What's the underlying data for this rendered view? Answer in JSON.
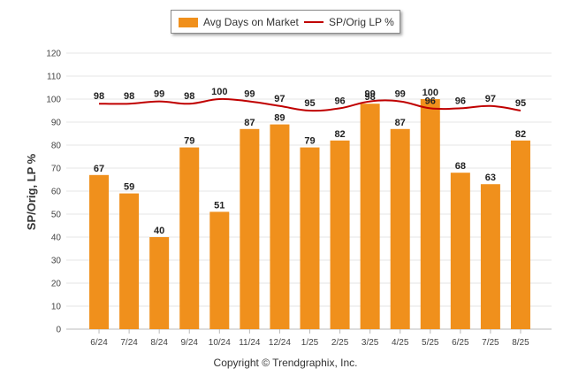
{
  "chart_data": {
    "type": "bar",
    "categories": [
      "6/24",
      "7/24",
      "8/24",
      "9/24",
      "10/24",
      "11/24",
      "12/24",
      "1/25",
      "2/25",
      "3/25",
      "4/25",
      "5/25",
      "6/25",
      "7/25",
      "8/25"
    ],
    "series": [
      {
        "name": "Avg Days on Market",
        "type": "bar",
        "color": "#f0901c",
        "values": [
          67,
          59,
          40,
          79,
          51,
          87,
          89,
          79,
          82,
          98,
          87,
          100,
          68,
          63,
          82
        ]
      },
      {
        "name": "SP/Orig LP %",
        "type": "line",
        "color": "#c00000",
        "values": [
          98,
          98,
          99,
          98,
          100,
          99,
          97,
          95,
          96,
          99,
          99,
          96,
          96,
          97,
          95
        ]
      }
    ],
    "ylabel": "SP/Orig, LP %",
    "xlabel": "",
    "ylim": [
      0,
      120
    ],
    "yticks": [
      0,
      10,
      20,
      30,
      40,
      50,
      60,
      70,
      80,
      90,
      100,
      110,
      120
    ],
    "grid": true,
    "legend_position": "top-center"
  },
  "legend": {
    "bar_label": "Avg Days on Market",
    "line_label": "SP/Orig LP %",
    "bar_color": "#f0901c",
    "line_color": "#c00000"
  },
  "footer": {
    "copyright": "Copyright © Trendgraphix, Inc."
  }
}
